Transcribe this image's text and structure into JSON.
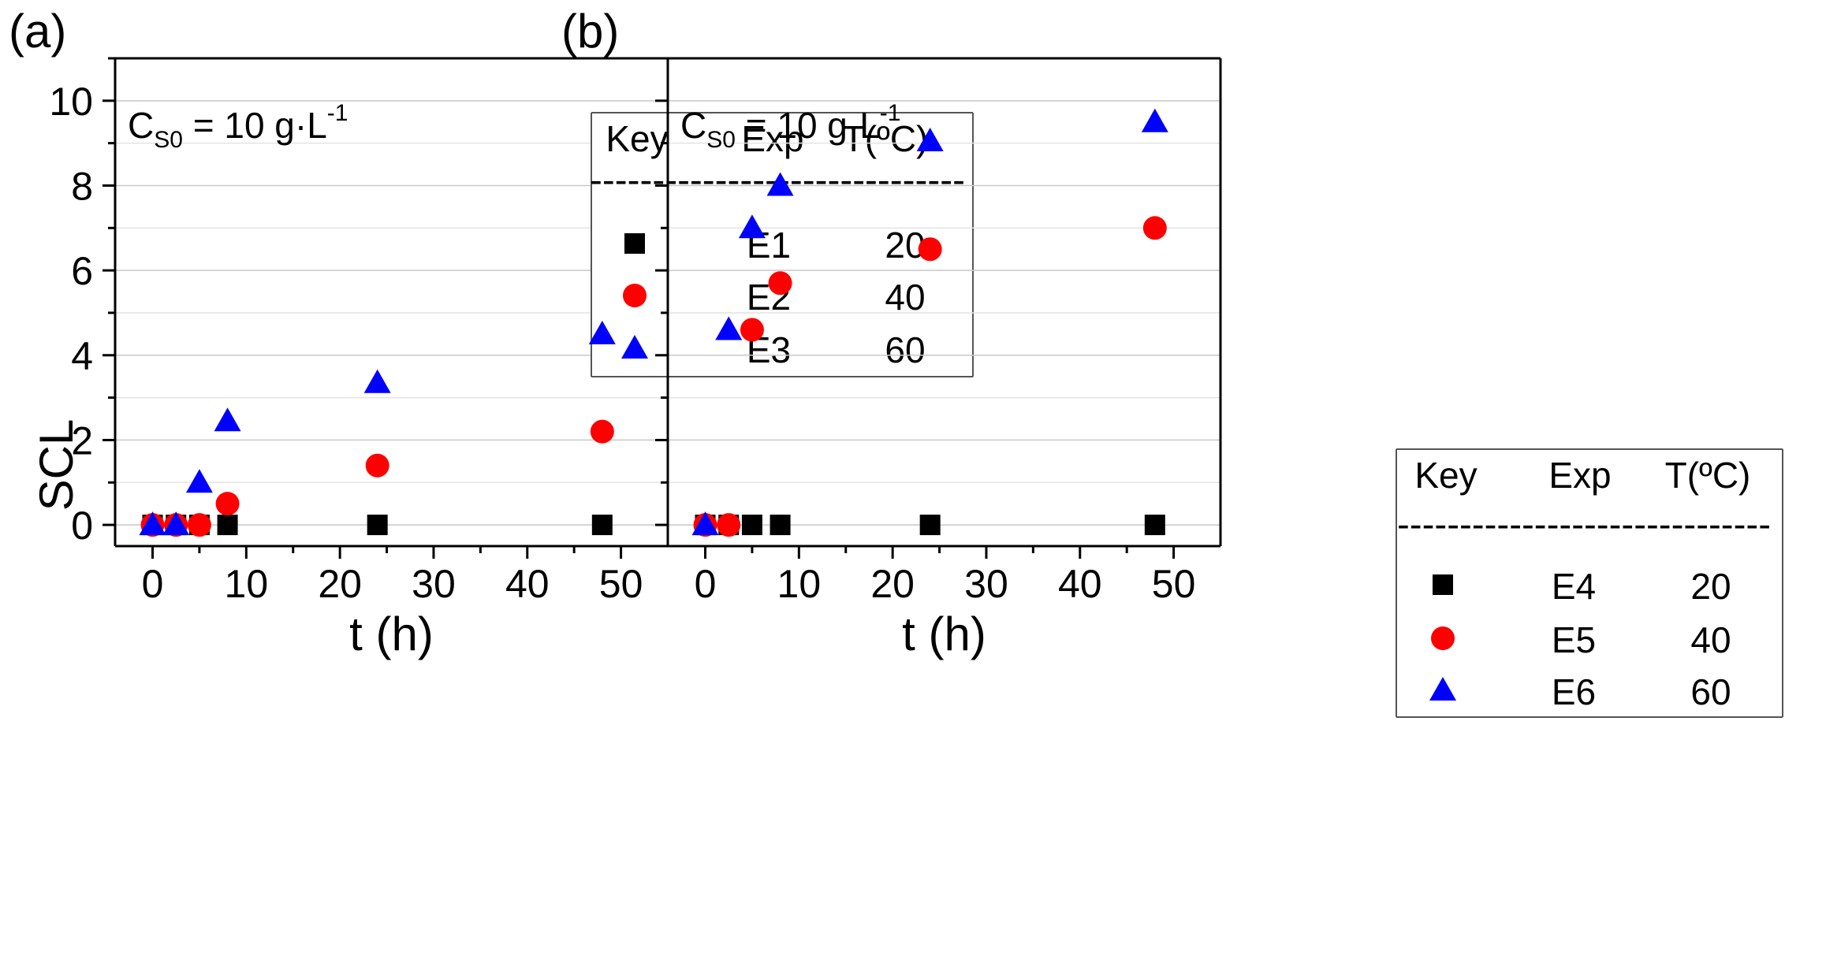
{
  "figure": {
    "ylabel": "SCL",
    "xlabel": "t (h)"
  },
  "chart_data": [
    {
      "type": "scatter",
      "panel_label": "(a)",
      "annotation": {
        "main": "C",
        "sub": "S0",
        "rest": " = 10 g·L",
        "sup": "-1"
      },
      "xlabel": "t (h)",
      "ylabel": "SCL",
      "xlim": [
        -4,
        55
      ],
      "ylim": [
        -0.5,
        11
      ],
      "xticks": [
        0,
        10,
        20,
        30,
        40,
        50
      ],
      "yticks": [
        0,
        2,
        4,
        6,
        8,
        10
      ],
      "grid": "horizontal",
      "legend_position": "top-right",
      "legend_headers": [
        "Key",
        "Exp",
        "T(ºC)"
      ],
      "legend_separator": "------------------------------",
      "series": [
        {
          "name": "E1",
          "temperature": "20",
          "marker": "square",
          "color": "#000000",
          "x": [
            0,
            2.5,
            5,
            8,
            24,
            48
          ],
          "y": [
            0,
            0,
            0,
            0,
            0,
            0
          ]
        },
        {
          "name": "E2",
          "temperature": "40",
          "marker": "circle",
          "color": "#ff0000",
          "x": [
            0,
            2.5,
            5,
            8,
            24,
            48
          ],
          "y": [
            0,
            0,
            0,
            0.5,
            1.4,
            2.2
          ]
        },
        {
          "name": "E3",
          "temperature": "60",
          "marker": "triangle",
          "color": "#0000ff",
          "x": [
            0,
            2.5,
            5,
            8,
            24,
            48
          ],
          "y": [
            0,
            0,
            1.0,
            2.45,
            3.35,
            4.5
          ]
        }
      ]
    },
    {
      "type": "scatter",
      "panel_label": "(b)",
      "annotation": {
        "main": "C",
        "sub": "S0",
        "rest": " = 10 g·L",
        "sup": "-1"
      },
      "xlabel": "t (h)",
      "ylabel": "",
      "xlim": [
        -4,
        55
      ],
      "ylim": [
        -0.5,
        11
      ],
      "xticks": [
        0,
        10,
        20,
        30,
        40,
        50
      ],
      "yticks": [
        0,
        2,
        4,
        6,
        8,
        10
      ],
      "grid": "horizontal",
      "legend_position": "center-right",
      "legend_headers": [
        "Key",
        "Exp",
        "T(ºC)"
      ],
      "legend_separator": "------------------------------",
      "series": [
        {
          "name": "E4",
          "temperature": "20",
          "marker": "square",
          "color": "#000000",
          "x": [
            0,
            2.5,
            5,
            8,
            24,
            48
          ],
          "y": [
            0,
            0,
            0,
            0,
            0,
            0
          ]
        },
        {
          "name": "E5",
          "temperature": "40",
          "marker": "circle",
          "color": "#ff0000",
          "x": [
            0,
            2.5,
            5,
            8,
            24,
            48
          ],
          "y": [
            0,
            0,
            4.6,
            5.7,
            6.5,
            7.0
          ]
        },
        {
          "name": "E6",
          "temperature": "60",
          "marker": "triangle",
          "color": "#0000ff",
          "x": [
            0,
            2.5,
            5,
            8,
            24,
            48
          ],
          "y": [
            0,
            4.6,
            7.0,
            8.0,
            9.05,
            9.5
          ]
        }
      ]
    }
  ]
}
